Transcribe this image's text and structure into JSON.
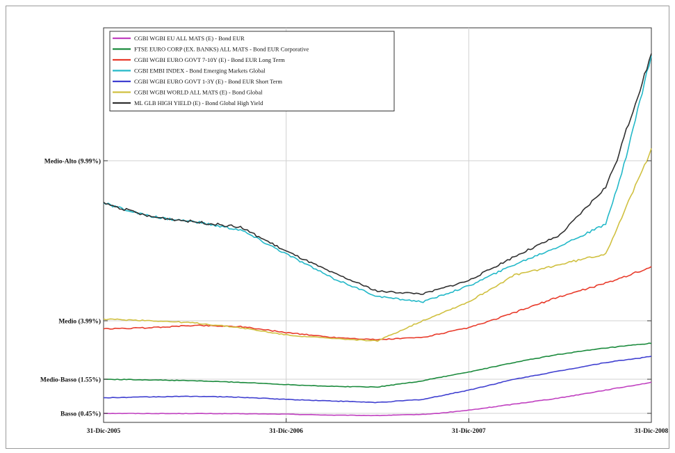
{
  "chart_data": {
    "type": "line",
    "title": "",
    "xlabel": "",
    "ylabel": "",
    "grid": true,
    "legend_position": "top-left",
    "x_ticks": [
      "31-Dic-2005",
      "31-Dic-2006",
      "31-Dic-2007",
      "31-Dic-2008"
    ],
    "y_ticks": [
      {
        "label": "Basso (0.45%)",
        "value": 0.45
      },
      {
        "label": "Medio-Basso (1.55%)",
        "value": 1.55
      },
      {
        "label": "Medio (3.99%)",
        "value": 3.99
      },
      {
        "label": "Medio-Alto (9.99%)",
        "value": 9.99
      }
    ],
    "x": [
      0,
      0.25,
      0.5,
      0.75,
      1,
      1.25,
      1.5,
      1.75,
      2,
      2.25,
      2.5,
      2.75,
      3
    ],
    "series": [
      {
        "name": "CGBI WGBI EU ALL MATS (E) - Bond EUR",
        "color": "#c040c0",
        "values": [
          0.45,
          0.44,
          0.44,
          0.43,
          0.41,
          0.36,
          0.34,
          0.4,
          0.55,
          0.75,
          0.95,
          1.2,
          1.45
        ]
      },
      {
        "name": "FTSE EURO CORP (EX. BANKS) ALL MATS - Bond EUR Corporative",
        "color": "#1a8a3c",
        "values": [
          1.55,
          1.53,
          1.5,
          1.45,
          1.38,
          1.32,
          1.3,
          1.5,
          1.85,
          2.25,
          2.6,
          2.85,
          3.05
        ]
      },
      {
        "name": "CGBI WGBI EURO GOVT 7-10Y (E) - Bond EUR Long Term",
        "color": "#e83a2a",
        "values": [
          3.65,
          3.7,
          3.8,
          3.75,
          3.5,
          3.3,
          3.2,
          3.3,
          3.7,
          4.3,
          4.9,
          5.4,
          6.0
        ]
      },
      {
        "name": "CGBI EMBI INDEX - Bond Emerging Markets Global",
        "color": "#22b8c8",
        "values": [
          8.4,
          7.9,
          7.7,
          7.4,
          6.5,
          5.6,
          4.9,
          4.7,
          5.3,
          6.1,
          6.8,
          7.6,
          13.2
        ]
      },
      {
        "name": "CGBI WGBI EURO GOVT 1-3Y (E) - Bond EUR Short Term",
        "color": "#3f3fd0",
        "values": [
          0.95,
          0.98,
          1.0,
          0.97,
          0.9,
          0.85,
          0.8,
          0.9,
          1.2,
          1.55,
          1.9,
          2.25,
          2.5
        ]
      },
      {
        "name": "CGBI WGBI WORLD ALL MATS (E) - Bond Global",
        "color": "#d0c040",
        "values": [
          4.05,
          4.0,
          3.9,
          3.7,
          3.4,
          3.25,
          3.15,
          4.0,
          4.7,
          5.7,
          6.1,
          6.5,
          10.4
        ]
      },
      {
        "name": "ML GLB HIGH YIELD (E) - Bond Global High Yield",
        "color": "#303030",
        "values": [
          8.4,
          7.9,
          7.7,
          7.5,
          6.6,
          5.8,
          5.1,
          5.0,
          5.5,
          6.4,
          7.2,
          9.0,
          13.2
        ]
      }
    ]
  }
}
